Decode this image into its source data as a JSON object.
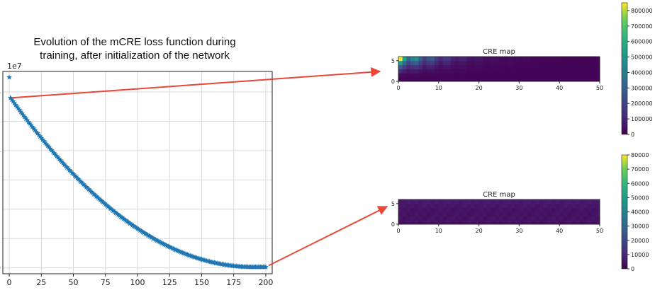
{
  "caption": {
    "line1": "Evolution of the mCRE loss function during",
    "line2": "training, after initialization of the network"
  },
  "chart_data": [
    {
      "type": "scatter",
      "title": "",
      "xlabel": "",
      "ylabel": "",
      "y_offset_label": "1e7",
      "xlim": [
        -5,
        205
      ],
      "ylim": [
        -2000000,
        67000000
      ],
      "xticks": [
        0,
        25,
        50,
        75,
        100,
        125,
        150,
        175,
        200
      ],
      "yticks": [
        0,
        1,
        2,
        3,
        4,
        5,
        6
      ],
      "ytick_labels": [
        "0",
        "1",
        "2",
        "3",
        "4",
        "5",
        "6"
      ],
      "grid": true,
      "marker": "star",
      "color": "#1f77b4",
      "outlier": {
        "x": 0,
        "y": 65000000
      },
      "series": [
        {
          "x_start": 1,
          "x_end": 200,
          "y_start": 58000000,
          "y_end": 300000,
          "decay_shape": "smooth quadratic decay flattening near 190"
        }
      ]
    },
    {
      "type": "heatmap",
      "title": "CRE map",
      "xlim": [
        0,
        50
      ],
      "ylim": [
        0,
        6
      ],
      "xticks": [
        0,
        10,
        20,
        30,
        40,
        50
      ],
      "yticks": [
        0,
        5
      ],
      "colormap": "viridis",
      "colorbar_range": [
        0,
        850000
      ],
      "colorbar_ticks": [
        0,
        100000,
        200000,
        300000,
        400000,
        500000,
        600000,
        700000,
        800000
      ]
    },
    {
      "type": "heatmap",
      "title": "CRE map",
      "xlim": [
        0,
        50
      ],
      "ylim": [
        0,
        6
      ],
      "xticks": [
        0,
        10,
        20,
        30,
        40,
        50
      ],
      "yticks": [
        0,
        5
      ],
      "colormap": "viridis",
      "colorbar_range": [
        0,
        80000
      ],
      "colorbar_ticks": [
        0,
        10000,
        20000,
        30000,
        40000,
        50000,
        60000,
        70000,
        80000
      ]
    }
  ],
  "arrows_color": "#e8473a",
  "grid_color": "#d9d9d9"
}
